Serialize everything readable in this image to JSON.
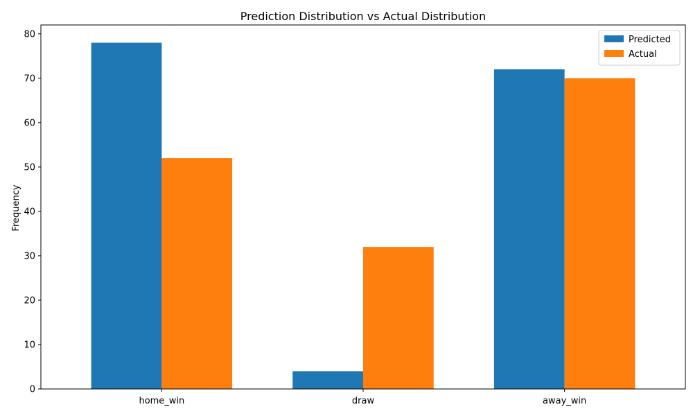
{
  "chart_data": {
    "type": "bar",
    "title": "Prediction Distribution vs Actual Distribution",
    "xlabel": "",
    "ylabel": "Frequency",
    "categories": [
      "home_win",
      "draw",
      "away_win"
    ],
    "series": [
      {
        "name": "Predicted",
        "values": [
          78,
          4,
          72
        ],
        "color": "#1f77b4"
      },
      {
        "name": "Actual",
        "values": [
          52,
          32,
          70
        ],
        "color": "#ff7f0e"
      }
    ],
    "ylim": [
      0,
      82
    ],
    "yticks": [
      0,
      10,
      20,
      30,
      40,
      50,
      60,
      70,
      80
    ],
    "grid": false,
    "legend_position": "top-right"
  }
}
